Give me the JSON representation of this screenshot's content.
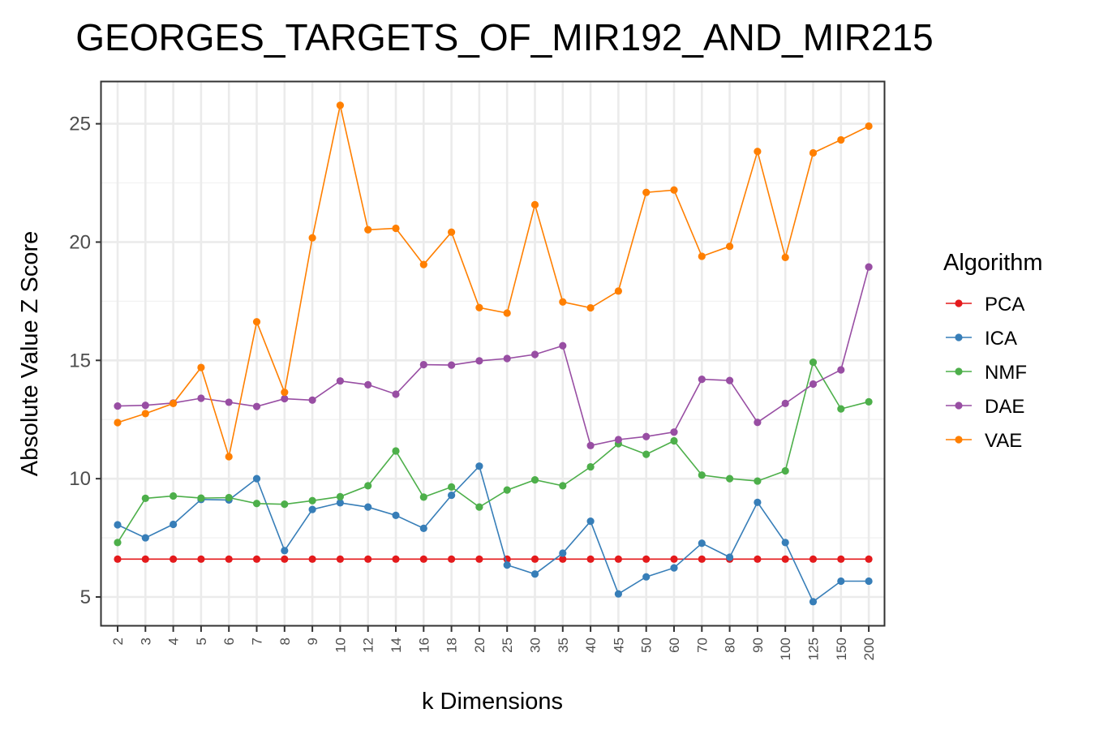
{
  "chart_data": {
    "type": "line",
    "title": "GEORGES_TARGETS_OF_MIR192_AND_MIR215",
    "xlabel": "k Dimensions",
    "ylabel": "Absolute Value Z Score",
    "categories": [
      "2",
      "3",
      "4",
      "5",
      "6",
      "7",
      "8",
      "9",
      "10",
      "12",
      "14",
      "16",
      "18",
      "20",
      "25",
      "30",
      "35",
      "40",
      "45",
      "50",
      "60",
      "70",
      "80",
      "90",
      "100",
      "125",
      "150",
      "200"
    ],
    "yticks": [
      5,
      10,
      15,
      20,
      25
    ],
    "ylim": [
      3.8,
      26.8
    ],
    "grid": true,
    "legend": {
      "title": "Algorithm",
      "position": "right"
    },
    "series": [
      {
        "name": "PCA",
        "color": "#e41a1c",
        "values": [
          6.6,
          6.6,
          6.6,
          6.6,
          6.6,
          6.6,
          6.6,
          6.6,
          6.6,
          6.6,
          6.6,
          6.6,
          6.6,
          6.6,
          6.6,
          6.6,
          6.6,
          6.6,
          6.6,
          6.6,
          6.6,
          6.6,
          6.6,
          6.6,
          6.6,
          6.6,
          6.6,
          6.6
        ]
      },
      {
        "name": "ICA",
        "color": "#377eb8",
        "values": [
          8.05,
          7.5,
          8.07,
          9.12,
          9.1,
          10.0,
          6.96,
          8.7,
          8.98,
          8.8,
          8.45,
          7.9,
          9.3,
          10.53,
          6.35,
          5.97,
          6.85,
          8.2,
          5.13,
          5.85,
          6.23,
          7.27,
          6.68,
          9.0,
          7.3,
          4.8,
          5.67,
          5.67
        ]
      },
      {
        "name": "NMF",
        "color": "#4daf4a",
        "values": [
          7.3,
          9.17,
          9.27,
          9.18,
          9.2,
          8.95,
          8.92,
          9.07,
          9.24,
          9.7,
          11.17,
          9.22,
          9.65,
          8.8,
          9.52,
          9.95,
          9.7,
          10.5,
          11.48,
          11.03,
          11.6,
          10.15,
          10.0,
          9.9,
          10.33,
          14.92,
          12.95,
          13.25
        ]
      },
      {
        "name": "DAE",
        "color": "#984ea3",
        "values": [
          13.07,
          13.1,
          13.2,
          13.4,
          13.23,
          13.05,
          13.38,
          13.32,
          14.13,
          13.97,
          13.57,
          14.82,
          14.8,
          14.98,
          15.08,
          15.25,
          15.62,
          11.4,
          11.65,
          11.78,
          11.97,
          14.2,
          14.15,
          12.38,
          13.18,
          14.0,
          14.6,
          18.95
        ]
      },
      {
        "name": "VAE",
        "color": "#ff7f00",
        "values": [
          12.37,
          12.75,
          13.18,
          14.7,
          10.93,
          16.63,
          13.65,
          20.18,
          25.78,
          20.52,
          20.58,
          19.05,
          20.42,
          17.23,
          17.0,
          21.58,
          17.47,
          17.22,
          17.93,
          22.1,
          22.2,
          19.4,
          19.82,
          23.83,
          19.35,
          23.77,
          24.32,
          24.9
        ]
      }
    ]
  }
}
